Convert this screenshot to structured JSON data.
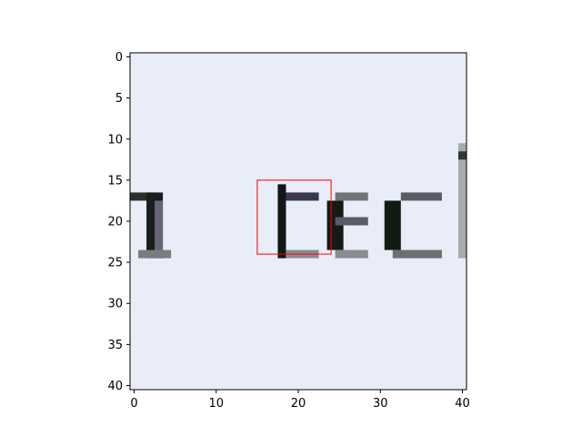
{
  "chart_data": {
    "type": "heatmap",
    "title": "",
    "xlabel": "",
    "ylabel": "",
    "image_size": [
      41,
      41
    ],
    "xlim": [
      -0.5,
      40.5
    ],
    "ylim": [
      40.5,
      -0.5
    ],
    "x_ticks": [
      0,
      10,
      20,
      30,
      40
    ],
    "y_ticks": [
      0,
      5,
      10,
      15,
      20,
      25,
      30,
      35,
      40
    ],
    "x_tick_labels": [
      "0",
      "10",
      "20",
      "30",
      "40"
    ],
    "y_tick_labels": [
      "0",
      "5",
      "10",
      "15",
      "20",
      "25",
      "30",
      "35",
      "40"
    ],
    "background_color": "#e8edf8",
    "ink_color": "#1a1f1c",
    "grid": false,
    "glyph_rows": [
      16,
      24
    ],
    "strokes": [
      {
        "label": "glyph-1-cap",
        "x": [
          0,
          2
        ],
        "y": [
          17,
          17
        ],
        "color": "#2a2f2c"
      },
      {
        "label": "glyph-1-stem",
        "x": [
          2,
          3
        ],
        "y": [
          17,
          24
        ],
        "color": "#1a1f1c"
      },
      {
        "label": "glyph-1-stem-edge",
        "x": [
          3,
          3
        ],
        "y": [
          18,
          24
        ],
        "color": "#6a6478"
      },
      {
        "label": "glyph-1-base",
        "x": [
          1,
          4
        ],
        "y": [
          24,
          24
        ],
        "color": "#7a7d80"
      },
      {
        "label": "glyph-t-stem",
        "x": [
          18,
          18
        ],
        "y": [
          16,
          24
        ],
        "color": "#121815"
      },
      {
        "label": "glyph-t-crossbar",
        "x": [
          19,
          22
        ],
        "y": [
          17,
          17
        ],
        "color": "#3a3650"
      },
      {
        "label": "glyph-t-tail",
        "x": [
          19,
          22
        ],
        "y": [
          24,
          24
        ],
        "color": "#8a8c90"
      },
      {
        "label": "glyph-e-left",
        "x": [
          24,
          25
        ],
        "y": [
          18,
          23
        ],
        "color": "#141a16"
      },
      {
        "label": "glyph-e-bar",
        "x": [
          25,
          28
        ],
        "y": [
          20,
          20
        ],
        "color": "#5a5a68"
      },
      {
        "label": "glyph-e-top",
        "x": [
          25,
          28
        ],
        "y": [
          17,
          17
        ],
        "color": "#707478"
      },
      {
        "label": "glyph-e-bottom",
        "x": [
          25,
          28
        ],
        "y": [
          24,
          24
        ],
        "color": "#8a8c90"
      },
      {
        "label": "glyph-c-left",
        "x": [
          31,
          32
        ],
        "y": [
          18,
          23
        ],
        "color": "#121a14"
      },
      {
        "label": "glyph-c-top",
        "x": [
          33,
          37
        ],
        "y": [
          17,
          17
        ],
        "color": "#585c64"
      },
      {
        "label": "glyph-c-bottom",
        "x": [
          32,
          37
        ],
        "y": [
          24,
          24
        ],
        "color": "#6c7070"
      },
      {
        "label": "glyph-d-stem",
        "x": [
          40,
          40
        ],
        "y": [
          11,
          24
        ],
        "color": "#a8aca8"
      },
      {
        "label": "glyph-d-top",
        "x": [
          40,
          40
        ],
        "y": [
          12,
          12
        ],
        "color": "#2a3a30"
      }
    ],
    "annotations": [
      {
        "type": "rectangle",
        "x": 15,
        "y": 15,
        "width": 9,
        "height": 9,
        "color": "#ff0000"
      }
    ]
  }
}
